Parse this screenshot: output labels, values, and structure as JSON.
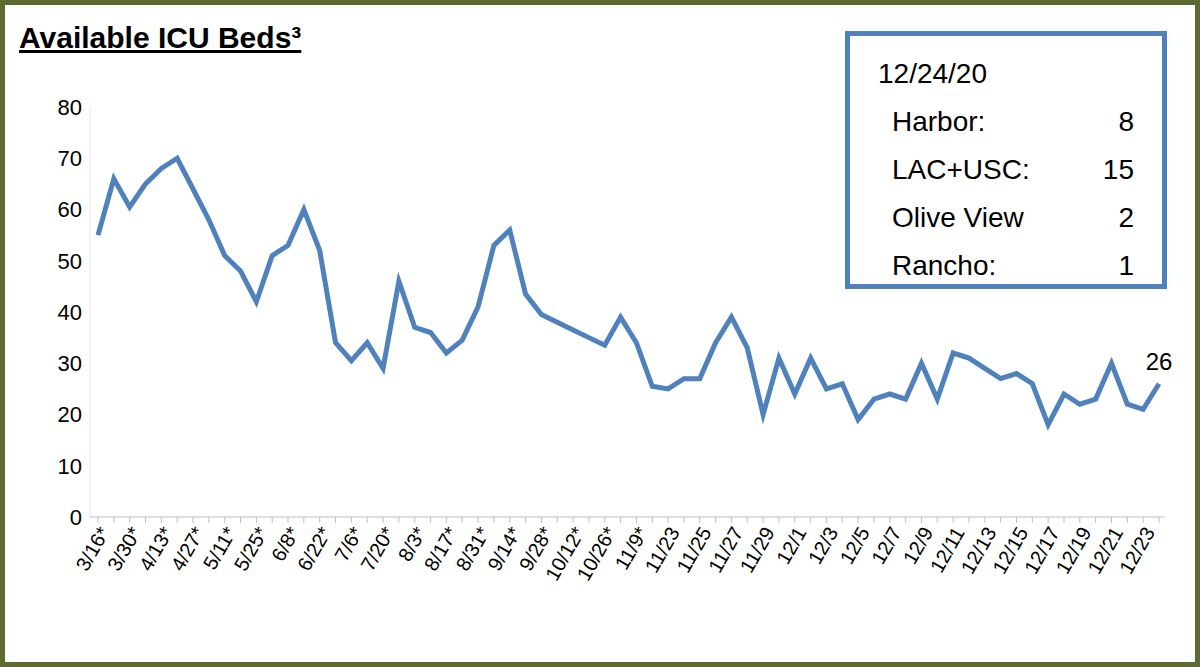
{
  "chart_data": {
    "type": "line",
    "title": "Available ICU Beds³",
    "categories": [
      "3/16*",
      null,
      "3/30*",
      null,
      "4/13*",
      null,
      "4/27*",
      null,
      "5/11*",
      null,
      "5/25*",
      null,
      "6/8*",
      null,
      "6/22*",
      null,
      "7/6*",
      null,
      "7/20*",
      null,
      "8/3*",
      null,
      "8/17*",
      null,
      "8/31*",
      null,
      "9/14*",
      null,
      "9/28*",
      null,
      "10/12*",
      null,
      "10/26*",
      null,
      "11/9*",
      null,
      "11/23",
      null,
      "11/25",
      null,
      "11/27",
      null,
      "11/29",
      null,
      "12/1",
      null,
      "12/3",
      null,
      "12/5",
      null,
      "12/7",
      null,
      "12/9",
      null,
      "12/11",
      null,
      "12/13",
      null,
      "12/15",
      null,
      "12/17",
      null,
      "12/19",
      null,
      "12/21",
      null,
      "12/23",
      null
    ],
    "values": [
      55,
      66,
      60.5,
      65,
      68,
      70,
      64,
      58,
      51,
      48,
      42,
      51,
      53,
      60,
      52,
      34,
      30.5,
      34,
      29,
      46,
      37,
      36,
      32,
      34.5,
      41,
      53,
      56,
      43.5,
      39.5,
      38,
      36.5,
      35,
      33.5,
      39,
      34,
      25.5,
      25,
      27,
      27,
      34,
      39,
      33,
      20,
      31,
      24,
      31,
      25,
      26,
      19,
      23,
      24,
      23,
      30,
      23,
      32,
      31,
      29,
      27,
      28,
      26,
      18,
      24,
      22,
      23,
      30,
      22,
      21,
      26
    ],
    "color": "#4f81bd",
    "ylim": [
      0,
      80
    ],
    "yticks": [
      0,
      10,
      20,
      30,
      40,
      50,
      60,
      70,
      80
    ],
    "grid": false,
    "point_label": {
      "index": 67,
      "value": 26
    },
    "inset": {
      "title": "12/24/20",
      "rows": [
        {
          "label": "Harbor:",
          "value": 8
        },
        {
          "label": "LAC+USC:",
          "value": 15
        },
        {
          "label": "Olive View",
          "value": 2
        },
        {
          "label": "Rancho:",
          "value": 1
        }
      ]
    }
  }
}
